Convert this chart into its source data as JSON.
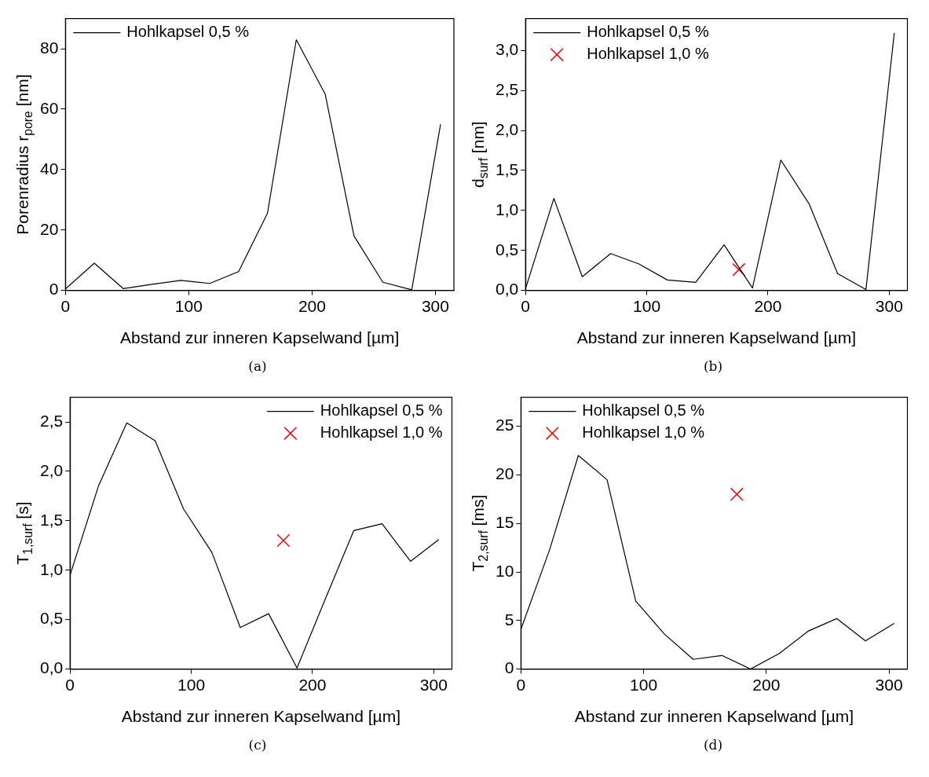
{
  "chart_data": [
    {
      "type": "line",
      "xlabel": "Abstand zur inneren Kapselwand [µm]",
      "ylabel": "Porenradius r$_{pore}$ [nm]",
      "annotations": [
        "(a)"
      ],
      "xlim": [
        0,
        315
      ],
      "xticks": [
        0,
        100,
        200,
        300
      ],
      "ylim": [
        0,
        90
      ],
      "yticks": [
        0,
        20,
        40,
        60,
        80
      ],
      "grid": false,
      "legend": "top left",
      "series": [
        {
          "name": "Hohlkapsel 0,5 %",
          "color": "#000000",
          "marker": "none",
          "x": [
            0,
            23.4,
            46.8,
            70.2,
            93.6,
            117,
            140.4,
            163.8,
            187.2,
            210.6,
            234,
            257.4,
            280.8,
            304.2
          ],
          "values": [
            0.5,
            9,
            0.6,
            2,
            3.3,
            2.3,
            6.2,
            25.5,
            83,
            65,
            18,
            2.7,
            0.2,
            55
          ]
        }
      ]
    },
    {
      "type": "line",
      "xlabel": "Abstand zur inneren Kapselwand [µm]",
      "ylabel": "d$_{surf}$ [nm]",
      "annotations": [
        "(b)"
      ],
      "xlim": [
        0,
        315
      ],
      "xticks": [
        0,
        100,
        200,
        300
      ],
      "ylim": [
        0,
        3.4
      ],
      "yticks": [
        {
          "value": 0,
          "label": "0,0"
        },
        {
          "value": 0.5,
          "label": "0,5"
        },
        {
          "value": 1,
          "label": "1,0"
        },
        {
          "value": 1.5,
          "label": "1,5"
        },
        {
          "value": 2,
          "label": "2,0"
        },
        {
          "value": 2.5,
          "label": "2,5"
        },
        {
          "value": 3,
          "label": "3,0"
        }
      ],
      "grid": false,
      "legend": "top left",
      "series": [
        {
          "name": "Hohlkapsel 0,5 %",
          "color": "#000000",
          "marker": "none",
          "x": [
            0,
            23.4,
            46.8,
            70.2,
            93.6,
            117,
            140.4,
            163.8,
            187.2,
            210.6,
            234,
            257.4,
            280.8,
            304.2
          ],
          "values": [
            0.02,
            1.15,
            0.17,
            0.46,
            0.33,
            0.13,
            0.1,
            0.57,
            0.03,
            1.63,
            1.08,
            0.21,
            0.01,
            3.22
          ]
        },
        {
          "name": "Hohlkapsel 1,0 %",
          "type": "scatter",
          "color": "#ff0000",
          "marker": "cross",
          "x": [
            176
          ],
          "values": [
            0.26
          ]
        }
      ]
    },
    {
      "type": "line",
      "xlabel": "Abstand zur inneren Kapselwand [µm]",
      "ylabel": "T$_{1,surf}$ [s]",
      "annotations": [
        "(c)"
      ],
      "xlim": [
        0,
        315
      ],
      "xticks": [
        0,
        100,
        200,
        300
      ],
      "ylim": [
        0,
        2.75
      ],
      "yticks": [
        {
          "value": 0,
          "label": "0,0"
        },
        {
          "value": 0.5,
          "label": "0,5"
        },
        {
          "value": 1,
          "label": "1,0"
        },
        {
          "value": 1.5,
          "label": "1,5"
        },
        {
          "value": 2,
          "label": "2,0"
        },
        {
          "value": 2.5,
          "label": "2,5"
        }
      ],
      "grid": false,
      "legend": "top right",
      "series": [
        {
          "name": "Hohlkapsel 0,5 %",
          "color": "#000000",
          "marker": "none",
          "x": [
            0,
            23.4,
            46.8,
            70.2,
            93.6,
            117,
            140.4,
            163.8,
            187.2,
            210.6,
            234,
            257.4,
            280.8,
            304.2
          ],
          "values": [
            0.95,
            1.85,
            2.49,
            2.31,
            1.62,
            1.18,
            0.42,
            0.56,
            0.01,
            0.71,
            1.4,
            1.47,
            1.09,
            1.31
          ]
        },
        {
          "name": "Hohlkapsel 1,0 %",
          "type": "scatter",
          "color": "#ff0000",
          "marker": "cross",
          "x": [
            176
          ],
          "values": [
            1.3
          ]
        }
      ]
    },
    {
      "type": "line",
      "xlabel": "Abstand zur inneren Kapselwand [µm]",
      "ylabel": "T$_{2,surf}$ [ms]",
      "annotations": [
        "(d)"
      ],
      "xlim": [
        0,
        315
      ],
      "xticks": [
        0,
        100,
        200,
        300
      ],
      "ylim": [
        0,
        28
      ],
      "yticks": [
        0,
        5,
        10,
        15,
        20,
        25
      ],
      "grid": false,
      "legend": "top left",
      "series": [
        {
          "name": "Hohlkapsel 0,5 %",
          "color": "#000000",
          "marker": "none",
          "x": [
            0,
            23.4,
            46.8,
            70.2,
            93.6,
            117,
            140.4,
            163.8,
            187.2,
            210.6,
            234,
            257.4,
            280.8,
            304.2
          ],
          "values": [
            4.1,
            12.3,
            22,
            19.5,
            7,
            3.6,
            1,
            1.4,
            0,
            1.6,
            3.9,
            5.2,
            2.9,
            4.7
          ]
        },
        {
          "name": "Hohlkapsel 1,0 %",
          "type": "scatter",
          "color": "#ff0000",
          "marker": "cross",
          "x": [
            176
          ],
          "values": [
            18
          ]
        }
      ]
    }
  ]
}
